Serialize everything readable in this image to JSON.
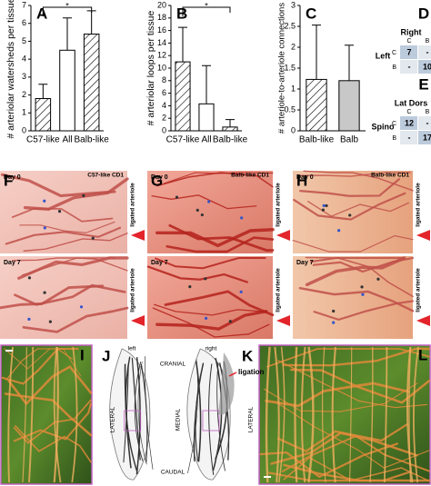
{
  "chart_data": [
    {
      "type": "bar",
      "panel": "A",
      "ylabel": "# arteriolar watersheds per tissue",
      "categories": [
        "C57-like",
        "All",
        "Balb-like"
      ],
      "values": [
        1.8,
        4.5,
        5.4
      ],
      "errors": [
        0.8,
        1.8,
        1.3
      ],
      "colors": [
        "#ffffff",
        "#ffffff",
        "#ffffff"
      ],
      "patterns": [
        "hatch",
        "none",
        "hatch"
      ],
      "significance": {
        "label": "*",
        "between": [
          0,
          2
        ]
      },
      "ylim": [
        0,
        7
      ],
      "yticks": [
        0,
        1,
        2,
        3,
        4,
        5,
        6,
        7
      ]
    },
    {
      "type": "bar",
      "panel": "B",
      "ylabel": "# arteriolar loops per tissue",
      "categories": [
        "C57-like",
        "All",
        "Balb-like"
      ],
      "values": [
        11,
        4.3,
        0.6
      ],
      "errors": [
        5.5,
        6.1,
        1.2
      ],
      "colors": [
        "#ffffff",
        "#ffffff",
        "#ffffff"
      ],
      "patterns": [
        "hatch",
        "none",
        "hatch"
      ],
      "significance": {
        "label": "*",
        "between": [
          0,
          2
        ]
      },
      "ylim": [
        0,
        20
      ],
      "yticks": [
        0,
        2,
        4,
        6,
        8,
        10,
        12,
        14,
        16,
        18,
        20
      ]
    },
    {
      "type": "bar",
      "panel": "C",
      "ylabel": "# arteriole-to-arteriole connections",
      "categories": [
        "Balb-like",
        "Balb"
      ],
      "values": [
        1.23,
        1.2
      ],
      "errors": [
        1.3,
        0.85
      ],
      "colors": [
        "#ffffff",
        "#c8c8c8"
      ],
      "patterns": [
        "hatch",
        "none"
      ],
      "ylim": [
        0,
        3
      ],
      "yticks": [
        0,
        0.5,
        1,
        1.5,
        2,
        2.5,
        3
      ]
    }
  ],
  "tables": [
    {
      "panel": "D",
      "col_header": "Right",
      "row_header": "Left",
      "cols": [
        "C",
        "B"
      ],
      "rows": [
        "C",
        "B"
      ],
      "cells": [
        [
          7,
          "-"
        ],
        [
          "-",
          10
        ]
      ]
    },
    {
      "panel": "E",
      "col_header": "Lat Dors",
      "row_header": "Spino",
      "cols": [
        "C",
        "B"
      ],
      "rows": [
        "C",
        "B"
      ],
      "cells": [
        [
          12,
          "-"
        ],
        [
          "-",
          17
        ]
      ]
    }
  ],
  "photos": [
    {
      "panel": "F",
      "label": "C57-like CD1",
      "days": [
        "Day 0",
        "Day 7"
      ],
      "notes": [
        "ligated arteriole",
        "ligated arteriole"
      ]
    },
    {
      "panel": "G",
      "label": "Balb-like CD1",
      "days": [
        "Day 0",
        "Day 7"
      ],
      "notes": [
        "ligated arteriole",
        "ligated arteriole"
      ]
    },
    {
      "panel": "H",
      "label": "Balb-like CD1",
      "days": [
        "Day 0",
        "Day 7"
      ],
      "notes": [
        "ligated arteriole",
        "ligated arteriole"
      ]
    }
  ],
  "maps": {
    "I": {
      "panel": "I"
    },
    "J": {
      "panel": "J",
      "side": "left",
      "top": "CRANIAL",
      "edge": "LATERAL",
      "bottom": "CAUDAL"
    },
    "K": {
      "panel": "K",
      "side": "right",
      "note": "ligation",
      "edge_inner": "MEDIAL",
      "edge_outer": "LATERAL"
    },
    "L": {
      "panel": "L"
    }
  }
}
